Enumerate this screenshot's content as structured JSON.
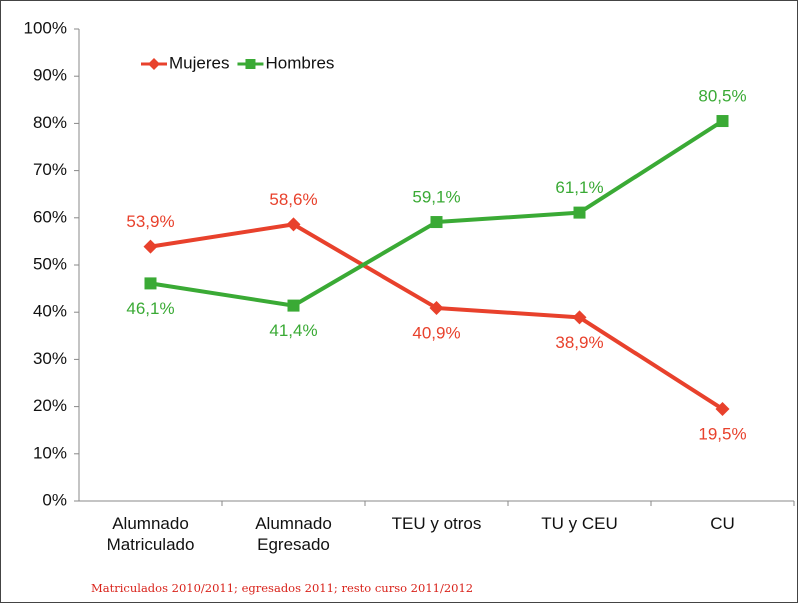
{
  "chart_data": {
    "type": "line",
    "categories": [
      "Alumnado Matriculado",
      "Alumnado Egresado",
      "TEU y otros",
      "TU y CEU",
      "CU"
    ],
    "series": [
      {
        "name": "Mujeres",
        "color": "#e8412c",
        "marker": "diamond",
        "values": [
          53.9,
          58.6,
          40.9,
          38.9,
          19.5
        ],
        "value_labels": [
          "53,9%",
          "58,6%",
          "40,9%",
          "38,9%",
          "19,5%"
        ]
      },
      {
        "name": "Hombres",
        "color": "#3aaa35",
        "marker": "square",
        "values": [
          46.1,
          41.4,
          59.1,
          61.1,
          80.5
        ],
        "value_labels": [
          "46,1%",
          "41,4%",
          "59,1%",
          "61,1%",
          "80,5%"
        ]
      }
    ],
    "ylim": [
      0,
      100
    ],
    "yticks": [
      {
        "value": 0,
        "label": "0%"
      },
      {
        "value": 10,
        "label": "10%"
      },
      {
        "value": 20,
        "label": "20%"
      },
      {
        "value": 30,
        "label": "30%"
      },
      {
        "value": 40,
        "label": "40%"
      },
      {
        "value": 50,
        "label": "50%"
      },
      {
        "value": 60,
        "label": "60%"
      },
      {
        "value": 70,
        "label": "70%"
      },
      {
        "value": 80,
        "label": "80%"
      },
      {
        "value": 90,
        "label": "90%"
      },
      {
        "value": 100,
        "label": "100%"
      }
    ],
    "grid": false,
    "legend": "top-left",
    "note": "Matriculados 2010/2011; egresados 2011; resto curso 2011/2012"
  }
}
